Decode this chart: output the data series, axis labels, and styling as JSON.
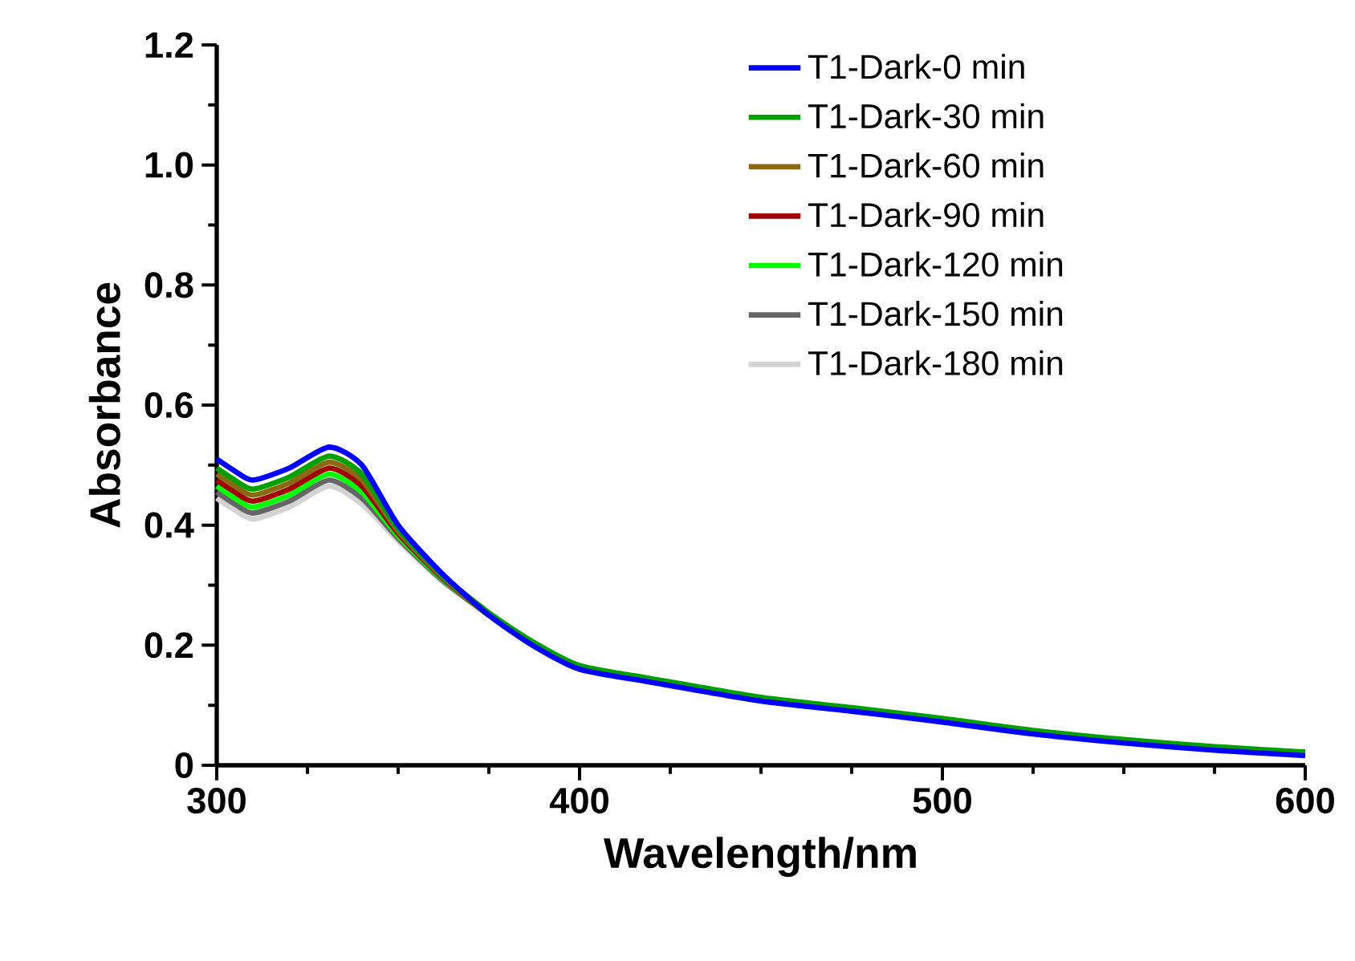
{
  "chart_data": {
    "type": "line",
    "xlabel": "Wavelength/nm",
    "ylabel": "Absorbance",
    "x": [
      300,
      305,
      310,
      320,
      331,
      340,
      350,
      362,
      375,
      387,
      400,
      420,
      450,
      475,
      500,
      525,
      550,
      575,
      600
    ],
    "xlim": [
      300,
      600
    ],
    "xticks": [
      300,
      400,
      500,
      600
    ],
    "ylim": [
      0,
      1.2
    ],
    "yticks": [
      0,
      0.2,
      0.4,
      0.6,
      0.8,
      {
        "value": 1.0,
        "label": "1.0"
      },
      1.2
    ],
    "legend": "top right",
    "marker": "none",
    "line_style": "solid",
    "series": [
      {
        "name": "T1-Dark-0 min",
        "color": "#0000ff",
        "values": [
          0.51,
          0.49,
          0.475,
          0.495,
          0.53,
          0.5,
          0.4,
          0.32,
          0.25,
          0.2,
          0.16,
          0.138,
          0.107,
          0.09,
          0.072,
          0.052,
          0.037,
          0.025,
          0.016
        ]
      },
      {
        "name": "T1-Dark-30 min",
        "color": "#00a000",
        "values": [
          0.495,
          0.475,
          0.46,
          0.48,
          0.515,
          0.485,
          0.394,
          0.317,
          0.254,
          0.206,
          0.166,
          0.144,
          0.113,
          0.096,
          0.078,
          0.058,
          0.043,
          0.031,
          0.022
        ]
      },
      {
        "name": "T1-Dark-60 min",
        "color": "#8b6914",
        "values": [
          0.485,
          0.465,
          0.45,
          0.47,
          0.505,
          0.475,
          0.39,
          0.315,
          0.25,
          null,
          null,
          null,
          null,
          null,
          null,
          null,
          null,
          null,
          null
        ]
      },
      {
        "name": "T1-Dark-90 min",
        "color": "#a00000",
        "values": [
          0.475,
          0.455,
          0.44,
          0.46,
          0.495,
          0.465,
          0.386,
          0.313,
          0.25,
          null,
          null,
          null,
          null,
          null,
          null,
          null,
          null,
          null,
          null
        ]
      },
      {
        "name": "T1-Dark-120 min",
        "color": "#00ff00",
        "values": [
          0.465,
          0.445,
          0.43,
          0.45,
          0.485,
          0.455,
          0.382,
          0.311,
          0.25,
          null,
          null,
          null,
          null,
          null,
          null,
          null,
          null,
          null,
          null
        ]
      },
      {
        "name": "T1-Dark-150 min",
        "color": "#666666",
        "values": [
          0.455,
          0.435,
          0.42,
          0.44,
          0.475,
          0.445,
          0.378,
          0.309,
          0.25,
          null,
          null,
          null,
          null,
          null,
          null,
          null,
          null,
          null,
          null
        ]
      },
      {
        "name": "T1-Dark-180 min",
        "color": "#d3d3d3",
        "values": [
          0.445,
          0.425,
          0.41,
          0.43,
          0.465,
          0.435,
          0.374,
          0.307,
          0.25,
          null,
          null,
          null,
          null,
          null,
          null,
          null,
          null,
          null,
          null
        ]
      }
    ]
  }
}
